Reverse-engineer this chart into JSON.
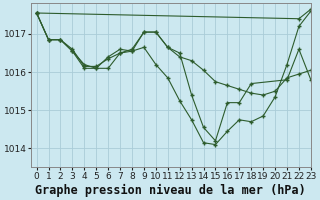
{
  "title": "Graphe pression niveau de la mer (hPa)",
  "background_color": "#cce8f0",
  "grid_color": "#aaccd8",
  "line_color": "#2d5c2d",
  "marker_color": "#2d5c2d",
  "xlim": [
    -0.5,
    23
  ],
  "ylim": [
    1013.5,
    1017.8
  ],
  "yticks": [
    1014,
    1015,
    1016,
    1017
  ],
  "xticks": [
    0,
    1,
    2,
    3,
    4,
    5,
    6,
    7,
    8,
    9,
    10,
    11,
    12,
    13,
    14,
    15,
    16,
    17,
    18,
    19,
    20,
    21,
    22,
    23
  ],
  "series": [
    {
      "x": [
        0,
        1,
        2,
        3,
        4,
        5,
        6,
        7,
        8,
        9,
        10,
        11,
        12,
        13,
        14,
        15,
        16,
        17,
        18,
        19,
        20,
        21,
        22,
        23
      ],
      "y": [
        1017.55,
        1016.85,
        1016.85,
        1016.6,
        1016.15,
        1016.15,
        1016.35,
        1016.5,
        1016.6,
        1017.05,
        1017.05,
        1016.65,
        1016.4,
        1016.3,
        1016.05,
        1015.75,
        1015.65,
        1015.55,
        1015.45,
        1015.4,
        1015.5,
        1015.85,
        1015.95,
        1016.05
      ]
    },
    {
      "x": [
        0,
        1,
        2,
        3,
        4,
        5,
        6,
        7,
        8,
        9,
        10,
        11,
        12,
        13,
        14,
        15,
        16,
        17,
        18,
        21,
        22,
        23
      ],
      "y": [
        1017.55,
        1016.85,
        1016.85,
        1016.55,
        1016.2,
        1016.1,
        1016.4,
        1016.6,
        1016.55,
        1017.05,
        1017.05,
        1016.65,
        1016.5,
        1015.4,
        1014.55,
        1014.2,
        1015.2,
        1015.2,
        1015.7,
        1015.8,
        1016.6,
        1015.8
      ]
    },
    {
      "x": [
        0,
        1,
        2,
        3,
        4,
        5,
        6,
        7,
        8,
        9,
        10,
        11,
        12,
        13,
        14,
        15,
        16,
        17,
        18,
        19,
        20,
        21,
        22,
        23
      ],
      "y": [
        1017.55,
        1016.85,
        1016.85,
        1016.55,
        1016.1,
        1016.1,
        1016.1,
        1016.5,
        1016.55,
        1016.65,
        1016.2,
        1015.85,
        1015.25,
        1014.75,
        1014.15,
        1014.1,
        1014.45,
        1014.75,
        1014.7,
        1014.85,
        1015.35,
        1016.2,
        1017.2,
        1017.6
      ]
    },
    {
      "x": [
        0,
        22,
        23
      ],
      "y": [
        1017.55,
        1017.4,
        1017.65
      ]
    }
  ],
  "title_fontsize": 8.5,
  "tick_fontsize": 6.5,
  "ylabel_fontsize": 7
}
